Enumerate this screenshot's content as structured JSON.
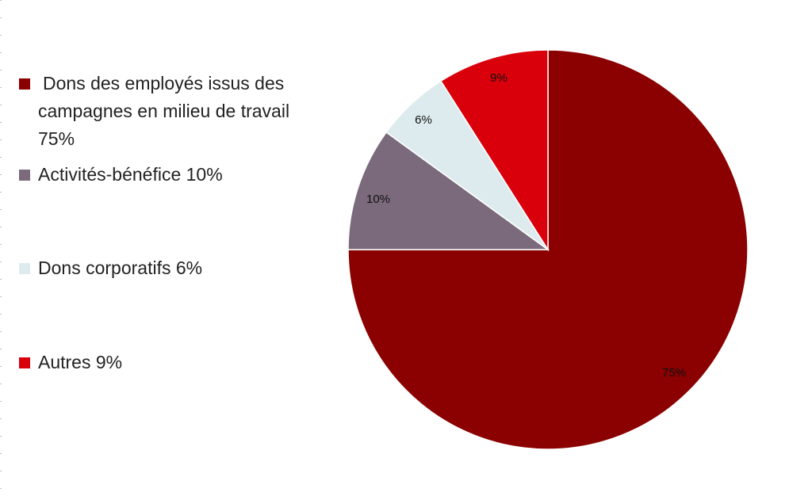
{
  "chart_data": {
    "type": "pie",
    "title": "",
    "start_angle": "12 o'clock",
    "direction": "clockwise",
    "legend_position": "left",
    "slices": [
      {
        "legend_label": "Dons des employés issus des campagnes en milieu de travail 75%",
        "value": 75,
        "data_label": "75%",
        "color": "#8b0000"
      },
      {
        "legend_label": "Activités-bénéfice 10%",
        "value": 10,
        "data_label": "10%",
        "color": "#7a6a7c"
      },
      {
        "legend_label": "Dons corporatifs 6%",
        "value": 6,
        "data_label": "6%",
        "color": "#deebee"
      },
      {
        "legend_label": "Autres 9%",
        "value": 9,
        "data_label": "9%",
        "color": "#d9000b"
      }
    ]
  }
}
